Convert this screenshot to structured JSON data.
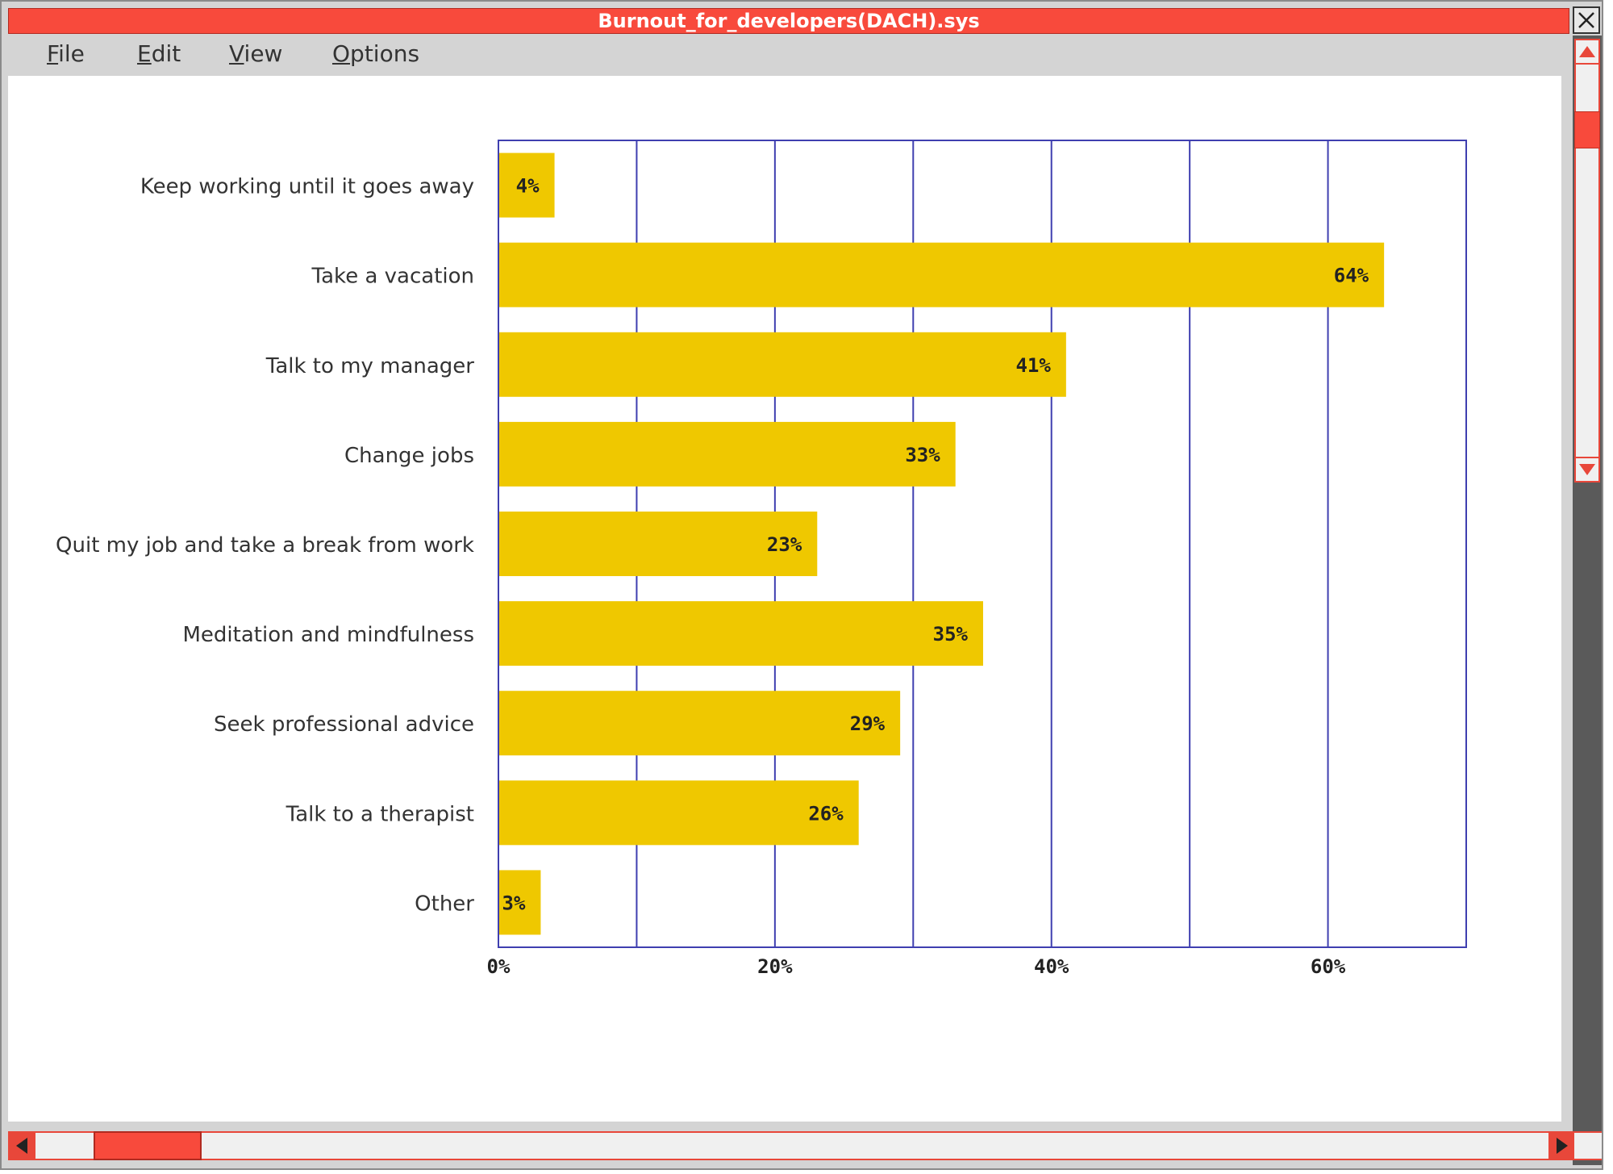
{
  "window": {
    "title": "Burnout_for_developers(DACH).sys",
    "close_icon": "close-icon"
  },
  "menu": {
    "items": [
      {
        "mnemonic": "F",
        "rest": "ile"
      },
      {
        "mnemonic": "E",
        "rest": "dit"
      },
      {
        "mnemonic": "V",
        "rest": "iew"
      },
      {
        "mnemonic": "O",
        "rest": "ptions"
      }
    ]
  },
  "colors": {
    "bar": "#efc800",
    "grid": "#3f3fb0",
    "accent": "#f84a3c"
  },
  "chart_data": {
    "type": "bar",
    "orientation": "horizontal",
    "categories": [
      "Keep working until it goes away",
      "Take a vacation",
      "Talk to my manager",
      "Change jobs",
      "Quit my job and take a break from work",
      "Meditation and mindfulness",
      "Seek professional advice",
      "Talk to a therapist",
      "Other"
    ],
    "values": [
      4,
      64,
      41,
      33,
      23,
      35,
      29,
      26,
      3
    ],
    "value_labels": [
      "4%",
      "64%",
      "41%",
      "33%",
      "23%",
      "35%",
      "29%",
      "26%",
      "3%"
    ],
    "xlim": [
      0,
      70
    ],
    "x_ticks": [
      0,
      20,
      40,
      60
    ],
    "x_tick_labels": [
      "0%",
      "20%",
      "40%",
      "60%"
    ],
    "grid_step": 10,
    "grid": true
  }
}
